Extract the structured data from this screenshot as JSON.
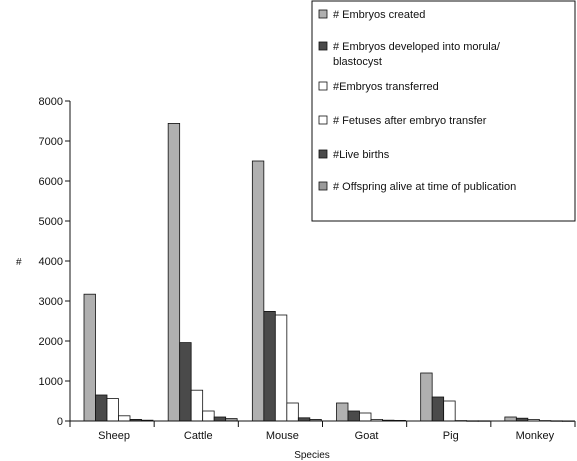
{
  "chart_data": {
    "type": "bar",
    "title": "",
    "xlabel": "Species",
    "ylabel": "#",
    "ylim": [
      0,
      8000
    ],
    "yticks": [
      "0",
      "1000",
      "2000",
      "3000",
      "4000",
      "5000",
      "6000",
      "7000",
      "8000"
    ],
    "categories": [
      "Sheep",
      "Cattle",
      "Mouse",
      "Goat",
      "Pig",
      "Monkey"
    ],
    "legend_position": "top-right",
    "series": [
      {
        "name": "# Embryos created",
        "color": "#b0b0b0",
        "values": [
          3170,
          7440,
          6500,
          450,
          1200,
          100
        ]
      },
      {
        "name": "# Embryos developed into morula/ blastocyst",
        "color": "#4a4a4a",
        "values": [
          650,
          1960,
          2740,
          250,
          600,
          70
        ]
      },
      {
        "name": "#Embryos transferred",
        "color": "#ffffff",
        "values": [
          560,
          770,
          2650,
          200,
          500,
          40
        ]
      },
      {
        "name": "# Fetuses after embryo transfer",
        "color": "#ffffff",
        "values": [
          130,
          250,
          450,
          40,
          10,
          10
        ]
      },
      {
        "name": "#Live births",
        "color": "#4a4a4a",
        "values": [
          40,
          100,
          80,
          20,
          5,
          5
        ]
      },
      {
        "name": "# Offspring alive at time of publication",
        "color": "#9a9a9a",
        "values": [
          20,
          60,
          40,
          15,
          5,
          3
        ]
      }
    ]
  }
}
